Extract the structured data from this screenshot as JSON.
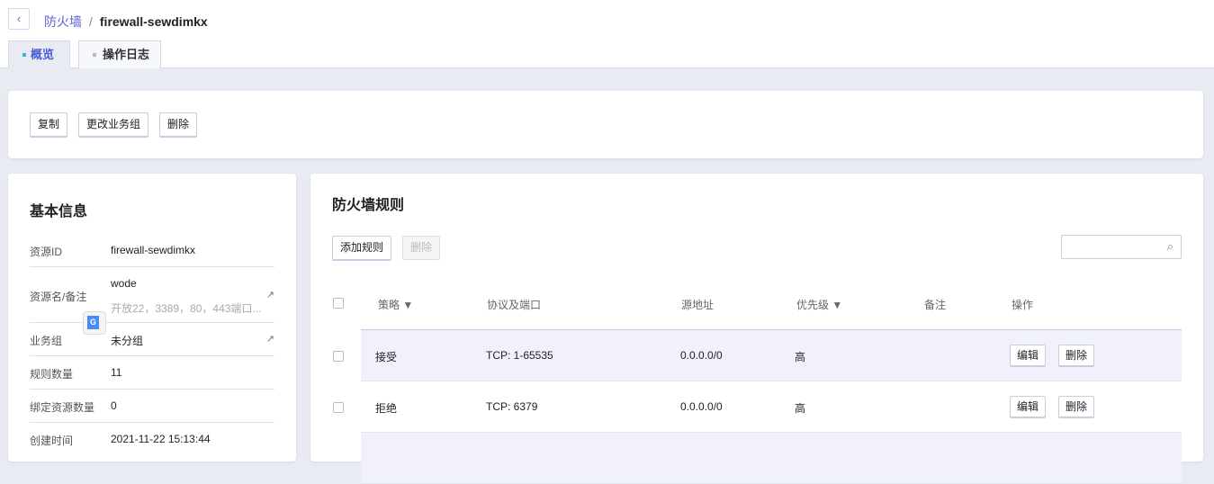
{
  "header": {
    "breadcrumb_parent": "防火墙",
    "separator": "/",
    "title": "firewall-sewdimkx"
  },
  "tabs": [
    {
      "label": "概览",
      "active": true
    },
    {
      "label": "操作日志",
      "active": false
    }
  ],
  "actions": {
    "copy": "复制",
    "change_group": "更改业务组",
    "delete": "删除"
  },
  "basic_info": {
    "title": "基本信息",
    "rows": [
      {
        "label": "资源ID",
        "value": "firewall-sewdimkx"
      },
      {
        "label": "资源名/备注",
        "value": "wode",
        "note": "开放22，3389，80，443端口..."
      },
      {
        "label": "业务组",
        "value": "未分组"
      },
      {
        "label": "规则数量",
        "value": "11"
      },
      {
        "label": "绑定资源数量",
        "value": "0"
      },
      {
        "label": "创建时间",
        "value": "2021-11-22 15:13:44"
      }
    ]
  },
  "rules": {
    "title": "防火墙规则",
    "add_label": "添加规则",
    "delete_label": "删除",
    "search_placeholder": "",
    "columns": [
      "策略",
      "协议及端口",
      "源地址",
      "优先级",
      "备注",
      "操作"
    ],
    "rows": [
      {
        "policy": "接受",
        "protocol": "TCP: 1-65535",
        "source": "0.0.0.0/0",
        "priority": "高",
        "note": "",
        "edit": "编辑",
        "delete": "删除"
      },
      {
        "policy": "拒绝",
        "protocol": "TCP: 6379",
        "source": "0.0.0.0/0",
        "priority": "高",
        "note": "",
        "edit": "编辑",
        "delete": "删除"
      }
    ]
  },
  "colors": {
    "accent": "#5b62d6",
    "background": "#e9ebf3",
    "row_highlight": "#f0f1fa"
  }
}
